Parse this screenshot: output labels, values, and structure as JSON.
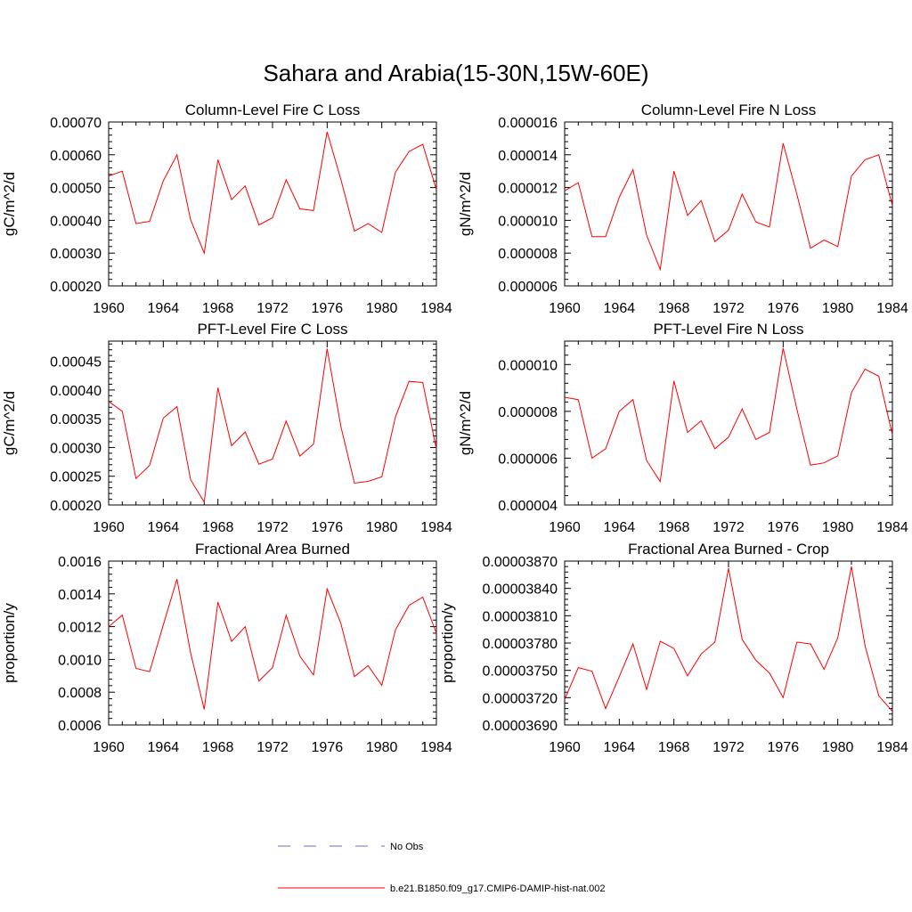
{
  "figure": {
    "title": "Sahara and Arabia(15-30N,15W-60E)"
  },
  "legend": {
    "entries": [
      {
        "label": "No Obs",
        "color": "#6a6ad0",
        "dash": true
      },
      {
        "label": "b.e21.B1850.f09_g17.CMIP6-DAMIP-hist-nat.002",
        "color": "#ff0000",
        "dash": false
      }
    ]
  },
  "chart_data": [
    {
      "type": "line",
      "title": "Column-Level Fire C Loss",
      "ylabel": "gC/m^2/d",
      "xlim": [
        1960,
        1984
      ],
      "ylim": [
        0.0002,
        0.0007
      ],
      "xticks": [
        1960,
        1964,
        1968,
        1972,
        1976,
        1980,
        1984
      ],
      "yticks": [
        0.0002,
        0.0003,
        0.0004,
        0.0005,
        0.0006,
        0.0007
      ],
      "ytick_labels": [
        "0.00020",
        "0.00030",
        "0.00040",
        "0.00050",
        "0.00060",
        "0.00070"
      ],
      "x": [
        1960,
        1961,
        1962,
        1963,
        1964,
        1965,
        1966,
        1967,
        1968,
        1969,
        1970,
        1971,
        1972,
        1973,
        1974,
        1975,
        1976,
        1977,
        1978,
        1979,
        1980,
        1981,
        1982,
        1983,
        1984
      ],
      "series": [
        {
          "color": "#ff0000",
          "values": [
            0.000535,
            0.00055,
            0.00039,
            0.000397,
            0.00052,
            0.0006,
            0.000402,
            0.0003,
            0.000585,
            0.000463,
            0.000505,
            0.000386,
            0.000408,
            0.000524,
            0.000435,
            0.00043,
            0.00067,
            0.000525,
            0.000367,
            0.00039,
            0.000363,
            0.000547,
            0.00061,
            0.000632,
            0.000493
          ]
        }
      ]
    },
    {
      "type": "line",
      "title": "Column-Level Fire N Loss",
      "ylabel": "gN/m^2/d",
      "xlim": [
        1960,
        1984
      ],
      "ylim": [
        6e-06,
        1.6e-05
      ],
      "xticks": [
        1960,
        1964,
        1968,
        1972,
        1976,
        1980,
        1984
      ],
      "yticks": [
        6e-06,
        8e-06,
        1e-05,
        1.2e-05,
        1.4e-05,
        1.6e-05
      ],
      "ytick_labels": [
        "0.000006",
        "0.000008",
        "0.000010",
        "0.000012",
        "0.000014",
        "0.000016"
      ],
      "x": [
        1960,
        1961,
        1962,
        1963,
        1964,
        1965,
        1966,
        1967,
        1968,
        1969,
        1970,
        1971,
        1972,
        1973,
        1974,
        1975,
        1976,
        1977,
        1978,
        1979,
        1980,
        1981,
        1982,
        1983,
        1984
      ],
      "series": [
        {
          "color": "#ff0000",
          "values": [
            1.18e-05,
            1.23e-05,
            9e-06,
            9e-06,
            1.14e-05,
            1.31e-05,
            9.1e-06,
            7e-06,
            1.3e-05,
            1.03e-05,
            1.12e-05,
            8.7e-06,
            9.4e-06,
            1.16e-05,
            9.9e-06,
            9.6e-06,
            1.47e-05,
            1.16e-05,
            8.3e-06,
            8.8e-06,
            8.4e-06,
            1.27e-05,
            1.37e-05,
            1.4e-05,
            1.09e-05
          ]
        }
      ]
    },
    {
      "type": "line",
      "title": "PFT-Level Fire C Loss",
      "ylabel": "gC/m^2/d",
      "xlim": [
        1960,
        1984
      ],
      "ylim": [
        0.0002,
        0.000485
      ],
      "xticks": [
        1960,
        1964,
        1968,
        1972,
        1976,
        1980,
        1984
      ],
      "yticks": [
        0.0002,
        0.00025,
        0.0003,
        0.00035,
        0.0004,
        0.00045
      ],
      "ytick_labels": [
        "0.00020",
        "0.00025",
        "0.00030",
        "0.00035",
        "0.00040",
        "0.00045"
      ],
      "x": [
        1960,
        1961,
        1962,
        1963,
        1964,
        1965,
        1966,
        1967,
        1968,
        1969,
        1970,
        1971,
        1972,
        1973,
        1974,
        1975,
        1976,
        1977,
        1978,
        1979,
        1980,
        1981,
        1982,
        1983,
        1984
      ],
      "series": [
        {
          "color": "#ff0000",
          "values": [
            0.00038,
            0.000363,
            0.000246,
            0.000269,
            0.000351,
            0.000371,
            0.000244,
            0.000205,
            0.000404,
            0.000303,
            0.000327,
            0.000271,
            0.00028,
            0.000346,
            0.000285,
            0.000306,
            0.000472,
            0.000337,
            0.000238,
            0.000241,
            0.000249,
            0.000353,
            0.000415,
            0.000413,
            0.000297
          ]
        }
      ]
    },
    {
      "type": "line",
      "title": "PFT-Level Fire N Loss",
      "ylabel": "gN/m^2/d",
      "xlim": [
        1960,
        1984
      ],
      "ylim": [
        4e-06,
        1.1e-05
      ],
      "xticks": [
        1960,
        1964,
        1968,
        1972,
        1976,
        1980,
        1984
      ],
      "yticks": [
        4e-06,
        6e-06,
        8e-06,
        1e-05
      ],
      "ytick_labels": [
        "0.000004",
        "0.000006",
        "0.000008",
        "0.000010"
      ],
      "x": [
        1960,
        1961,
        1962,
        1963,
        1964,
        1965,
        1966,
        1967,
        1968,
        1969,
        1970,
        1971,
        1972,
        1973,
        1974,
        1975,
        1976,
        1977,
        1978,
        1979,
        1980,
        1981,
        1982,
        1983,
        1984
      ],
      "series": [
        {
          "color": "#ff0000",
          "values": [
            8.6e-06,
            8.5e-06,
            6e-06,
            6.4e-06,
            8e-06,
            8.5e-06,
            5.9e-06,
            5e-06,
            9.3e-06,
            7.1e-06,
            7.6e-06,
            6.4e-06,
            6.9e-06,
            8.1e-06,
            6.8e-06,
            7.1e-06,
            1.07e-05,
            8.1e-06,
            5.7e-06,
            5.8e-06,
            6.1e-06,
            8.8e-06,
            9.8e-06,
            9.5e-06,
            7e-06
          ]
        }
      ]
    },
    {
      "type": "line",
      "title": "Fractional Area Burned",
      "ylabel": "proportion/y",
      "xlim": [
        1960,
        1984
      ],
      "ylim": [
        0.0006,
        0.0016
      ],
      "xticks": [
        1960,
        1964,
        1968,
        1972,
        1976,
        1980,
        1984
      ],
      "yticks": [
        0.0006,
        0.0008,
        0.001,
        0.0012,
        0.0014,
        0.0016
      ],
      "ytick_labels": [
        "0.0006",
        "0.0008",
        "0.0010",
        "0.0012",
        "0.0014",
        "0.0016"
      ],
      "x": [
        1960,
        1961,
        1962,
        1963,
        1964,
        1965,
        1966,
        1967,
        1968,
        1969,
        1970,
        1971,
        1972,
        1973,
        1974,
        1975,
        1976,
        1977,
        1978,
        1979,
        1980,
        1981,
        1982,
        1983,
        1984
      ],
      "series": [
        {
          "color": "#ff0000",
          "values": [
            0.0012,
            0.00127,
            0.000945,
            0.000925,
            0.00121,
            0.00149,
            0.00104,
            0.000695,
            0.00135,
            0.00111,
            0.0012,
            0.000868,
            0.00095,
            0.00127,
            0.00102,
            0.000905,
            0.00143,
            0.00122,
            0.000895,
            0.000962,
            0.000842,
            0.00118,
            0.00133,
            0.00138,
            0.00116
          ]
        }
      ]
    },
    {
      "type": "line",
      "title": "Fractional Area Burned - Crop",
      "ylabel": "proportion/y",
      "xlim": [
        1960,
        1984
      ],
      "ylim": [
        3.69e-05,
        3.87e-05
      ],
      "xticks": [
        1960,
        1964,
        1968,
        1972,
        1976,
        1980,
        1984
      ],
      "yticks": [
        3.69e-05,
        3.72e-05,
        3.75e-05,
        3.78e-05,
        3.81e-05,
        3.84e-05,
        3.87e-05
      ],
      "ytick_labels": [
        "0.00003690",
        "0.00003720",
        "0.00003750",
        "0.00003780",
        "0.00003810",
        "0.00003840",
        "0.00003870"
      ],
      "x": [
        1960,
        1961,
        1962,
        1963,
        1964,
        1965,
        1966,
        1967,
        1968,
        1969,
        1970,
        1971,
        1972,
        1973,
        1974,
        1975,
        1976,
        1977,
        1978,
        1979,
        1980,
        1981,
        1982,
        1983,
        1984
      ],
      "series": [
        {
          "color": "#ff0000",
          "values": [
            3.718e-05,
            3.753e-05,
            3.749e-05,
            3.708e-05,
            3.743e-05,
            3.779e-05,
            3.729e-05,
            3.782e-05,
            3.774e-05,
            3.744e-05,
            3.768e-05,
            3.781e-05,
            3.862e-05,
            3.784e-05,
            3.761e-05,
            3.747e-05,
            3.72e-05,
            3.781e-05,
            3.779e-05,
            3.751e-05,
            3.786e-05,
            3.864e-05,
            3.777e-05,
            3.722e-05,
            3.705e-05
          ]
        }
      ]
    }
  ]
}
